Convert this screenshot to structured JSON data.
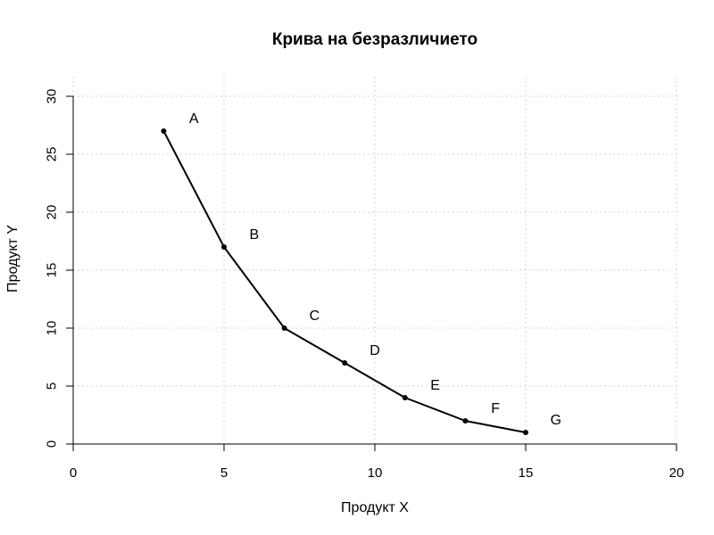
{
  "chart_data": {
    "type": "line",
    "title": "Крива на безразличието",
    "xlabel": "Продукт X",
    "ylabel": "Продукт Y",
    "xlim": [
      0,
      20
    ],
    "ylim": [
      0,
      30
    ],
    "x_ticks": [
      "0",
      "5",
      "10",
      "15",
      "20"
    ],
    "y_ticks": [
      "0",
      "5",
      "10",
      "15",
      "20",
      "25",
      "30"
    ],
    "grid": true,
    "grid_style": "dotted",
    "points": [
      {
        "x": 3,
        "y": 27,
        "label": "A"
      },
      {
        "x": 5,
        "y": 17,
        "label": "B"
      },
      {
        "x": 7,
        "y": 10,
        "label": "C"
      },
      {
        "x": 9,
        "y": 7,
        "label": "D"
      },
      {
        "x": 11,
        "y": 4,
        "label": "E"
      },
      {
        "x": 13,
        "y": 2,
        "label": "F"
      },
      {
        "x": 15,
        "y": 1,
        "label": "G"
      }
    ],
    "colors": {
      "line": "#000000",
      "grid": "#d3d3d3",
      "axis": "#000000"
    }
  }
}
